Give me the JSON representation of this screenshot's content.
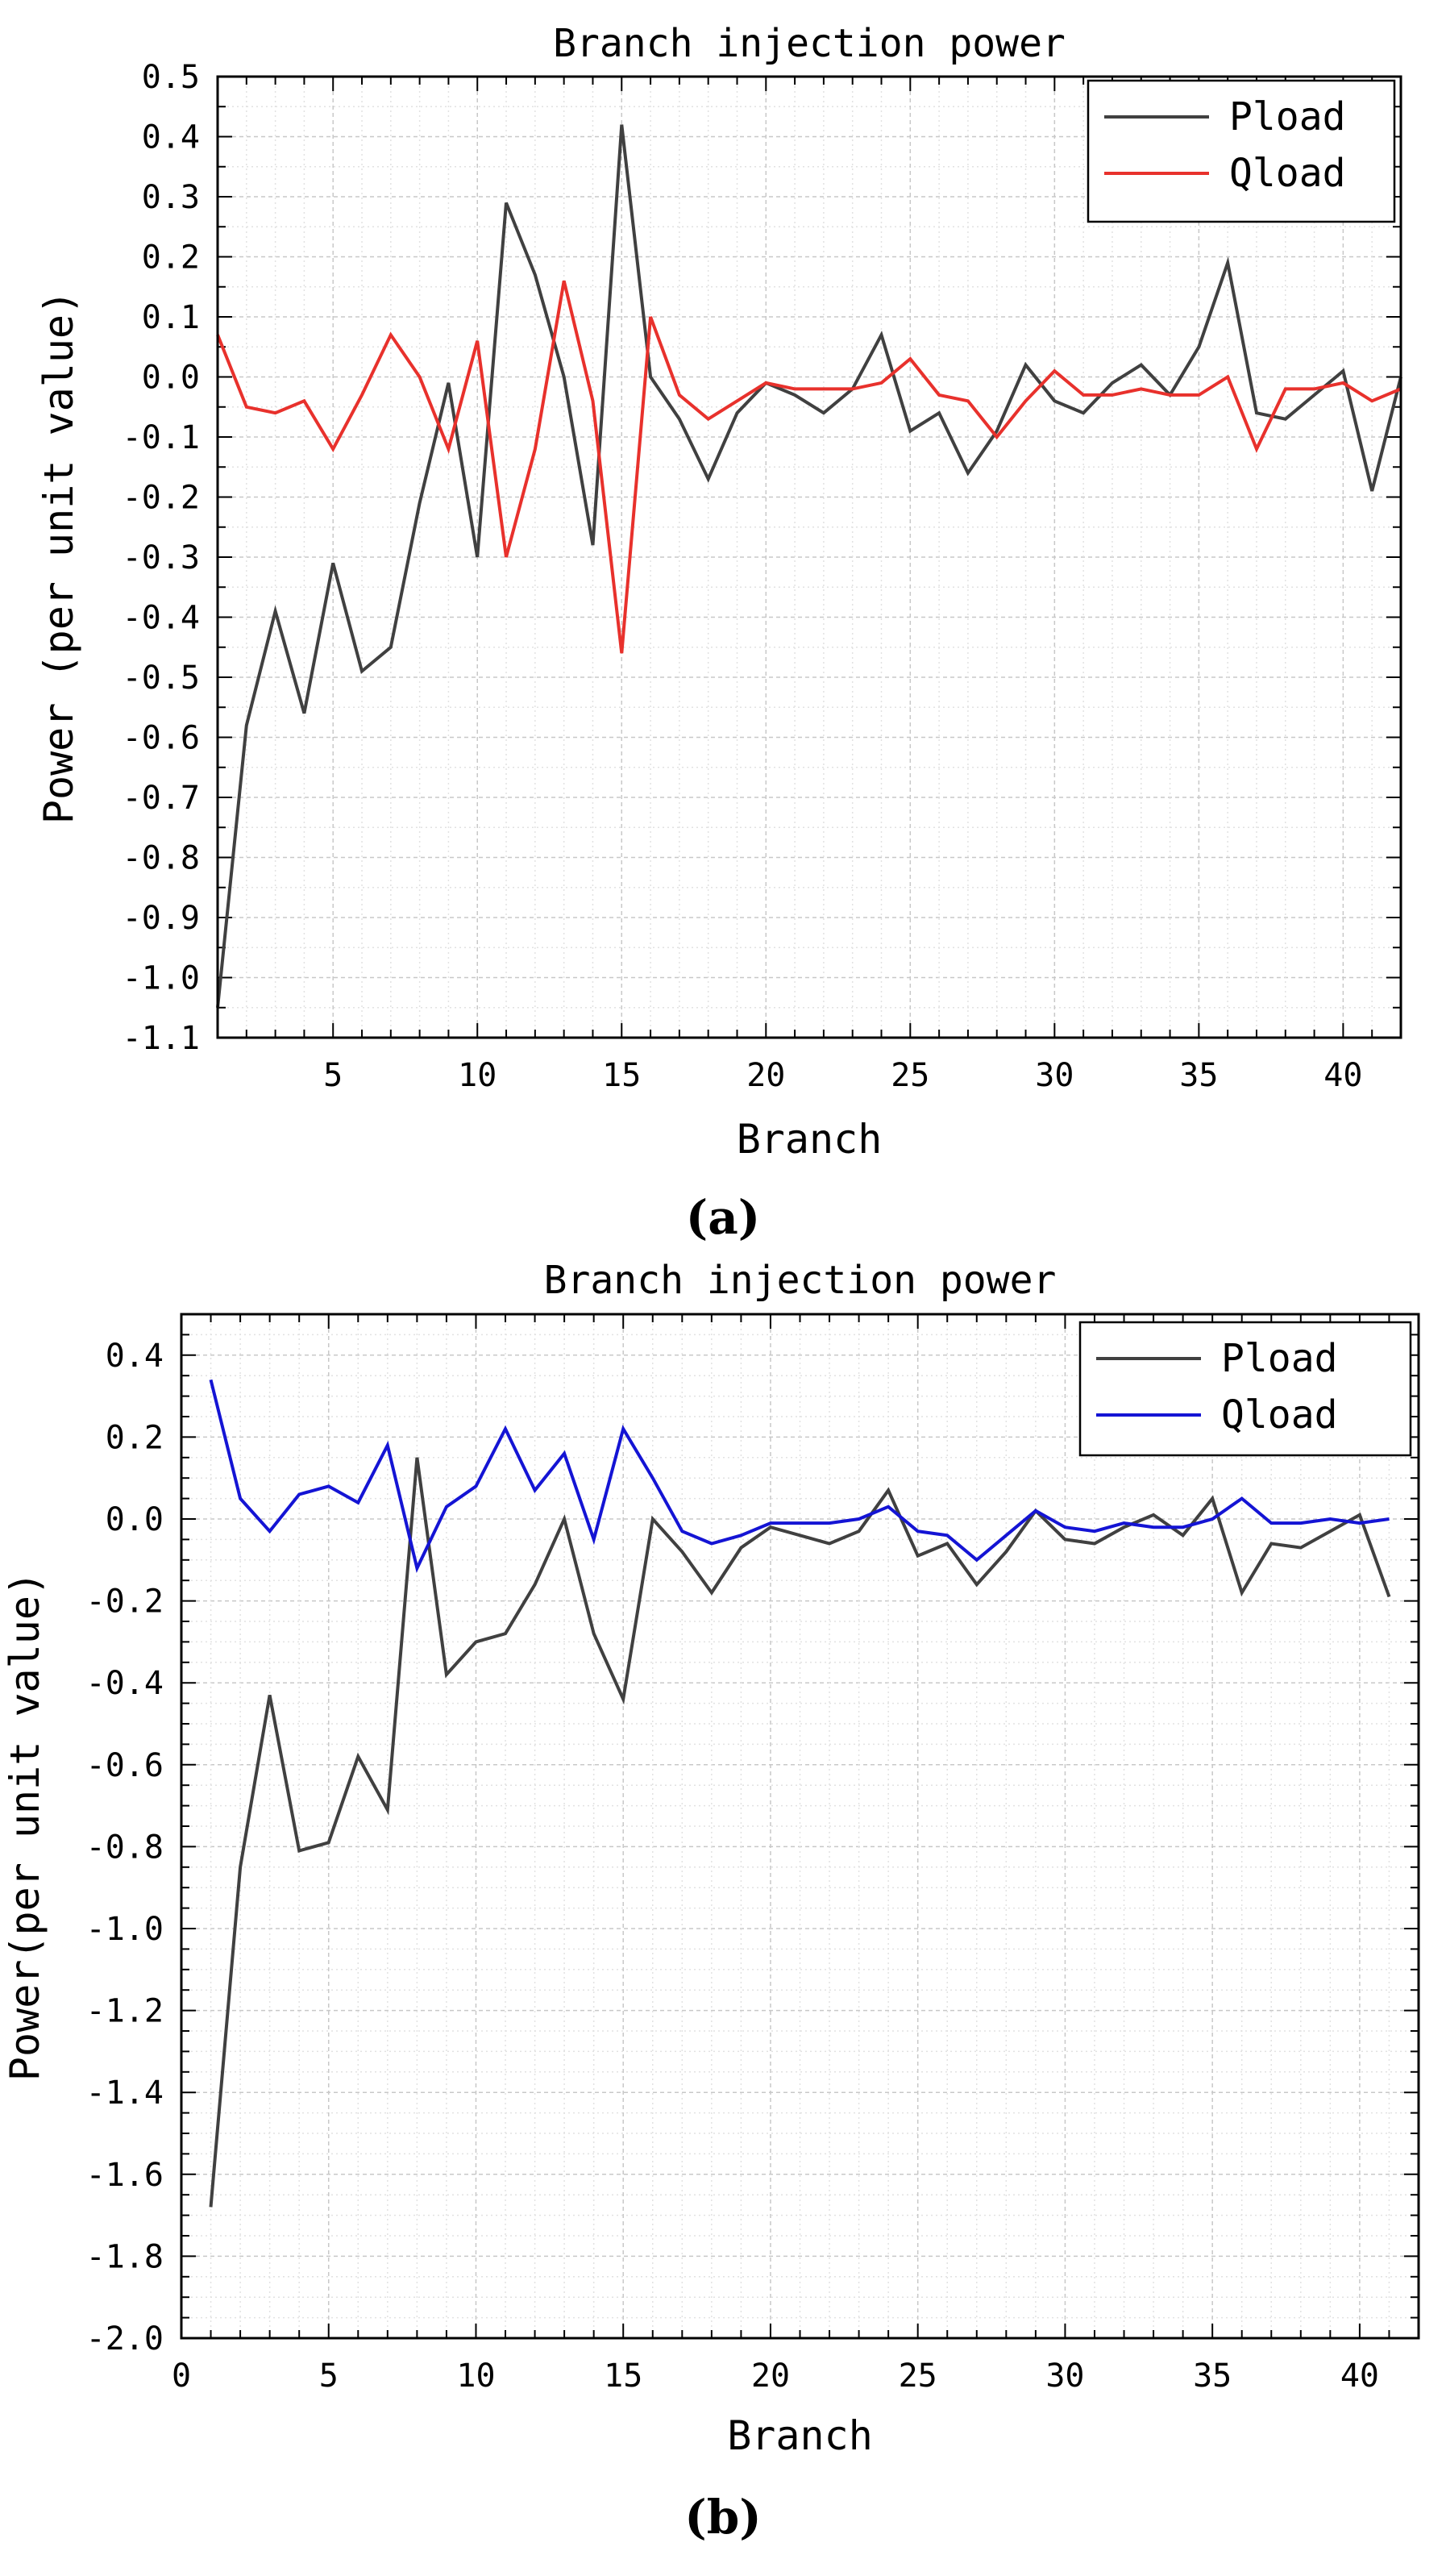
{
  "chart_data": [
    {
      "type": "line",
      "panel_label": "(a)",
      "title": "Branch injection power",
      "xlabel": "Branch",
      "ylabel": "Power (per unit value)",
      "xlim": [
        1,
        42
      ],
      "ylim": [
        -1.1,
        0.5
      ],
      "xticks": [
        5,
        10,
        15,
        20,
        25,
        30,
        35,
        40
      ],
      "xtick_labels": [
        "5",
        "10",
        "15",
        "20",
        "25",
        "30",
        "35",
        "40"
      ],
      "yticks": [
        -1.1,
        -1.0,
        -0.9,
        -0.8,
        -0.7,
        -0.6,
        -0.5,
        -0.4,
        -0.3,
        -0.2,
        -0.1,
        0.0,
        0.1,
        0.2,
        0.3,
        0.4,
        0.5
      ],
      "ytick_labels": [
        "-1.1",
        "-1.0",
        "-0.9",
        "-0.8",
        "-0.7",
        "-0.6",
        "-0.5",
        "-0.4",
        "-0.3",
        "-0.2",
        "-0.1",
        "0.0",
        "0.1",
        "0.2",
        "0.3",
        "0.4",
        "0.5"
      ],
      "grid": true,
      "legend_position": "top-right",
      "x": [
        1,
        2,
        3,
        4,
        5,
        6,
        7,
        8,
        9,
        10,
        11,
        12,
        13,
        14,
        15,
        16,
        17,
        18,
        19,
        20,
        21,
        22,
        23,
        24,
        25,
        26,
        27,
        28,
        29,
        30,
        31,
        32,
        33,
        34,
        35,
        36,
        37,
        38,
        39,
        40,
        41,
        42
      ],
      "series": [
        {
          "name": "Pload",
          "color": "#404040",
          "values": [
            -1.05,
            -0.58,
            -0.39,
            -0.56,
            -0.31,
            -0.49,
            -0.45,
            -0.21,
            -0.01,
            -0.3,
            0.29,
            0.17,
            0.0,
            -0.28,
            0.42,
            0.0,
            -0.07,
            -0.17,
            -0.06,
            -0.01,
            -0.03,
            -0.06,
            -0.02,
            0.07,
            -0.09,
            -0.06,
            -0.16,
            -0.09,
            0.02,
            -0.04,
            -0.06,
            -0.01,
            0.02,
            -0.03,
            0.05,
            0.19,
            -0.06,
            -0.07,
            -0.03,
            0.01,
            -0.19,
            0.0
          ]
        },
        {
          "name": "Qload",
          "color": "#e8312c",
          "values": [
            0.07,
            -0.05,
            -0.06,
            -0.04,
            -0.12,
            -0.03,
            0.07,
            0.0,
            -0.12,
            0.06,
            -0.3,
            -0.12,
            0.16,
            -0.04,
            -0.46,
            0.1,
            -0.03,
            -0.07,
            -0.04,
            -0.01,
            -0.02,
            -0.02,
            -0.02,
            -0.01,
            0.03,
            -0.03,
            -0.04,
            -0.1,
            -0.04,
            0.01,
            -0.03,
            -0.03,
            -0.02,
            -0.03,
            -0.03,
            0.0,
            -0.12,
            -0.02,
            -0.02,
            -0.01,
            -0.04,
            -0.02
          ]
        }
      ]
    },
    {
      "type": "line",
      "panel_label": "(b)",
      "title": "Branch injection power",
      "xlabel": "Branch",
      "ylabel": "Power(per unit value)",
      "xlim": [
        0,
        42
      ],
      "ylim": [
        -2.0,
        0.5
      ],
      "xticks": [
        0,
        5,
        10,
        15,
        20,
        25,
        30,
        35,
        40
      ],
      "xtick_labels": [
        "0",
        "5",
        "10",
        "15",
        "20",
        "25",
        "30",
        "35",
        "40"
      ],
      "yticks": [
        -2.0,
        -1.8,
        -1.6,
        -1.4,
        -1.2,
        -1.0,
        -0.8,
        -0.6,
        -0.4,
        -0.2,
        0.0,
        0.2,
        0.4
      ],
      "ytick_labels": [
        "-2.0",
        "-1.8",
        "-1.6",
        "-1.4",
        "-1.2",
        "-1.0",
        "-0.8",
        "-0.6",
        "-0.4",
        "-0.2",
        "0.0",
        "0.2",
        "0.4"
      ],
      "grid": true,
      "legend_position": "top-right",
      "x": [
        1,
        2,
        3,
        4,
        5,
        6,
        7,
        8,
        9,
        10,
        11,
        12,
        13,
        14,
        15,
        16,
        17,
        18,
        19,
        20,
        21,
        22,
        23,
        24,
        25,
        26,
        27,
        28,
        29,
        30,
        31,
        32,
        33,
        34,
        35,
        36,
        37,
        38,
        39,
        40,
        41
      ],
      "series": [
        {
          "name": "Pload",
          "color": "#404040",
          "values": [
            -1.68,
            -0.85,
            -0.43,
            -0.81,
            -0.79,
            -0.58,
            -0.71,
            0.15,
            -0.38,
            -0.3,
            -0.28,
            -0.16,
            0.0,
            -0.28,
            -0.44,
            0.0,
            -0.08,
            -0.18,
            -0.07,
            -0.02,
            -0.04,
            -0.06,
            -0.03,
            0.07,
            -0.09,
            -0.06,
            -0.16,
            -0.08,
            0.02,
            -0.05,
            -0.06,
            -0.02,
            0.01,
            -0.04,
            0.05,
            -0.18,
            -0.06,
            -0.07,
            -0.03,
            0.01,
            -0.19
          ]
        },
        {
          "name": "Qload",
          "color": "#1414d4",
          "values": [
            0.34,
            0.05,
            -0.03,
            0.06,
            0.08,
            0.04,
            0.18,
            -0.12,
            0.03,
            0.08,
            0.22,
            0.07,
            0.16,
            -0.05,
            0.22,
            0.1,
            -0.03,
            -0.06,
            -0.04,
            -0.01,
            -0.01,
            -0.01,
            0.0,
            0.03,
            -0.03,
            -0.04,
            -0.1,
            -0.04,
            0.02,
            -0.02,
            -0.03,
            -0.01,
            -0.02,
            -0.02,
            0.0,
            0.05,
            -0.01,
            -0.01,
            0.0,
            -0.01,
            0.0
          ]
        }
      ]
    }
  ]
}
